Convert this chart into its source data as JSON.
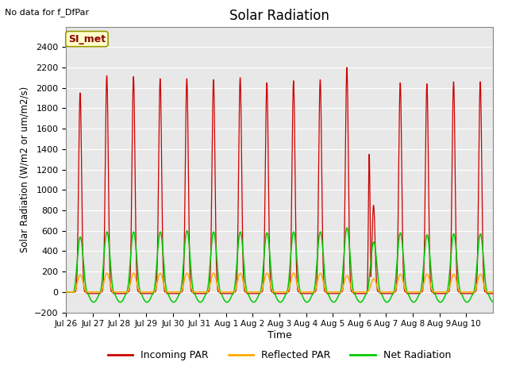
{
  "title": "Solar Radiation",
  "top_left_text": "No data for f_DfPar",
  "ylabel": "Solar Radiation (W/m2 or um/m2/s)",
  "xlabel": "Time",
  "ylim": [
    -200,
    2600
  ],
  "yticks": [
    -200,
    0,
    200,
    400,
    600,
    800,
    1000,
    1200,
    1400,
    1600,
    1800,
    2000,
    2200,
    2400
  ],
  "fig_bg_color": "#ffffff",
  "plot_bg_color": "#e8e8e8",
  "legend_items": [
    "Incoming PAR",
    "Reflected PAR",
    "Net Radiation"
  ],
  "legend_colors": [
    "#cc0000",
    "#ffaa00",
    "#00cc00"
  ],
  "annotation_box": "SI_met",
  "annotation_box_color": "#ffffcc",
  "annotation_box_border": "#999900",
  "num_days": 16,
  "x_tick_labels": [
    "Jul 26",
    "Jul 27",
    "Jul 28",
    "Jul 29",
    "Jul 30",
    "Jul 31",
    "Aug 1",
    "Aug 2",
    "Aug 3",
    "Aug 4",
    "Aug 5",
    "Aug 6",
    "Aug 7",
    "Aug 8",
    "Aug 9",
    "Aug 10"
  ],
  "incoming_peaks": [
    1950,
    2120,
    2110,
    2090,
    2090,
    2080,
    2100,
    2050,
    2070,
    2080,
    2200,
    850,
    2050,
    2040,
    2060,
    2060
  ],
  "reflected_peaks": [
    170,
    185,
    185,
    185,
    185,
    185,
    185,
    185,
    185,
    185,
    160,
    130,
    175,
    175,
    175,
    175
  ],
  "net_peaks": [
    540,
    590,
    590,
    590,
    600,
    590,
    590,
    580,
    590,
    590,
    630,
    490,
    580,
    560,
    570,
    570
  ],
  "night_dip": -100,
  "color_incoming": "#cc0000",
  "color_reflected": "#ffaa00",
  "color_net": "#00cc00"
}
